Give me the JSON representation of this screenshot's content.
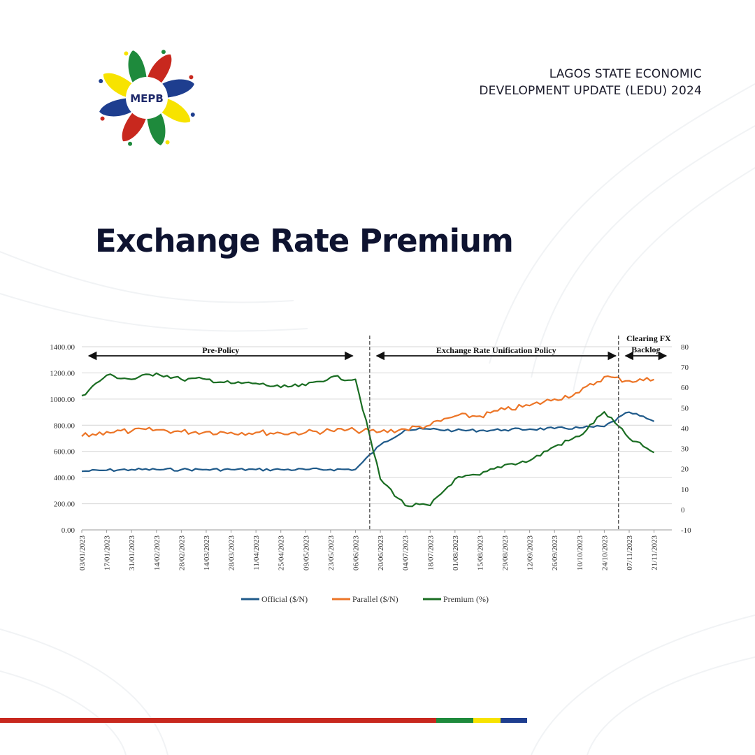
{
  "header": {
    "line1": "LAGOS STATE ECONOMIC",
    "line2": "DEVELOPMENT UPDATE (LEDU) 2024"
  },
  "logo": {
    "text": "MEPB"
  },
  "page": {
    "title": "Exchange Rate Premium"
  },
  "colors": {
    "official": "#1f5a8a",
    "parallel": "#ec7527",
    "premium": "#1a6d22",
    "title": "#0e1330",
    "bar_red": "#c8281e",
    "bar_green": "#1e8a3c",
    "bar_yellow": "#f7e300",
    "bar_blue": "#1e3e8f"
  },
  "chart_data": {
    "type": "line",
    "x": [
      "03/01/2023",
      "17/01/2023",
      "31/01/2023",
      "14/02/2023",
      "28/02/2023",
      "14/03/2023",
      "28/03/2023",
      "11/04/2023",
      "25/04/2023",
      "09/05/2023",
      "23/05/2023",
      "06/06/2023",
      "20/06/2023",
      "04/07/2023",
      "18/07/2023",
      "01/08/2023",
      "15/08/2023",
      "29/08/2023",
      "12/09/2023",
      "26/09/2023",
      "10/10/2023",
      "24/10/2023",
      "07/11/2023",
      "21/11/2023"
    ],
    "x_tick_labels": [
      "03/01/2023",
      "17/01/2023",
      "31/01/2023",
      "14/02/2023",
      "28/02/2023",
      "14/03/2023",
      "28/03/2023",
      "11/04/2023",
      "25/04/2023",
      "09/05/2023",
      "23/05/2023",
      "06/06/2023",
      "20/06/2023",
      "04/07/2023",
      "18/07/2023",
      "01/08/2023",
      "15/08/2023",
      "29/08/2023",
      "12/09/2023",
      "26/09/2023",
      "10/10/2023",
      "24/10/2023",
      "07/11/2023",
      "21/11/2023"
    ],
    "series": [
      {
        "name": "Official ($/N)",
        "axis": "left",
        "values": [
          448,
          456,
          461,
          461,
          461,
          461,
          461,
          461,
          461,
          461,
          462,
          463,
          650,
          765,
          770,
          760,
          760,
          765,
          770,
          775,
          780,
          790,
          900,
          830
        ]
      },
      {
        "name": "Parallel ($/N)",
        "axis": "left",
        "values": [
          715,
          750,
          755,
          765,
          750,
          750,
          745,
          745,
          740,
          745,
          760,
          760,
          750,
          770,
          800,
          870,
          870,
          920,
          950,
          1000,
          1050,
          1170,
          1140,
          1150
        ]
      },
      {
        "name": "Premium (%)",
        "axis": "right",
        "values": [
          56,
          66,
          64,
          67,
          64,
          64,
          62,
          62,
          60,
          61,
          65,
          64,
          15,
          2,
          2,
          15,
          17,
          22,
          24,
          31,
          36,
          48,
          35,
          28
        ]
      }
    ],
    "y_left": {
      "min": 0,
      "max": 1400,
      "ticks": [
        "0.00",
        "200.00",
        "400.00",
        "600.00",
        "800.00",
        "1000.00",
        "1200.00",
        "1400.00"
      ]
    },
    "y_right": {
      "min": -10,
      "max": 80,
      "ticks": [
        "-10",
        "0",
        "10",
        "20",
        "30",
        "40",
        "50",
        "60",
        "70",
        "80"
      ]
    },
    "annotations": [
      {
        "text": "Pre-Policy",
        "from": "03/01/2023",
        "to": "06/06/2023"
      },
      {
        "text": "Exchange Rate Unification Policy",
        "from": "14/06/2023",
        "to": "01/11/2023"
      },
      {
        "text": "Clearing FX Backlog",
        "from": "01/11/2023",
        "to": "30/11/2023"
      }
    ],
    "phase_dividers": [
      "14/06/2023",
      "01/11/2023"
    ],
    "grid": true,
    "legend_position": "bottom"
  }
}
